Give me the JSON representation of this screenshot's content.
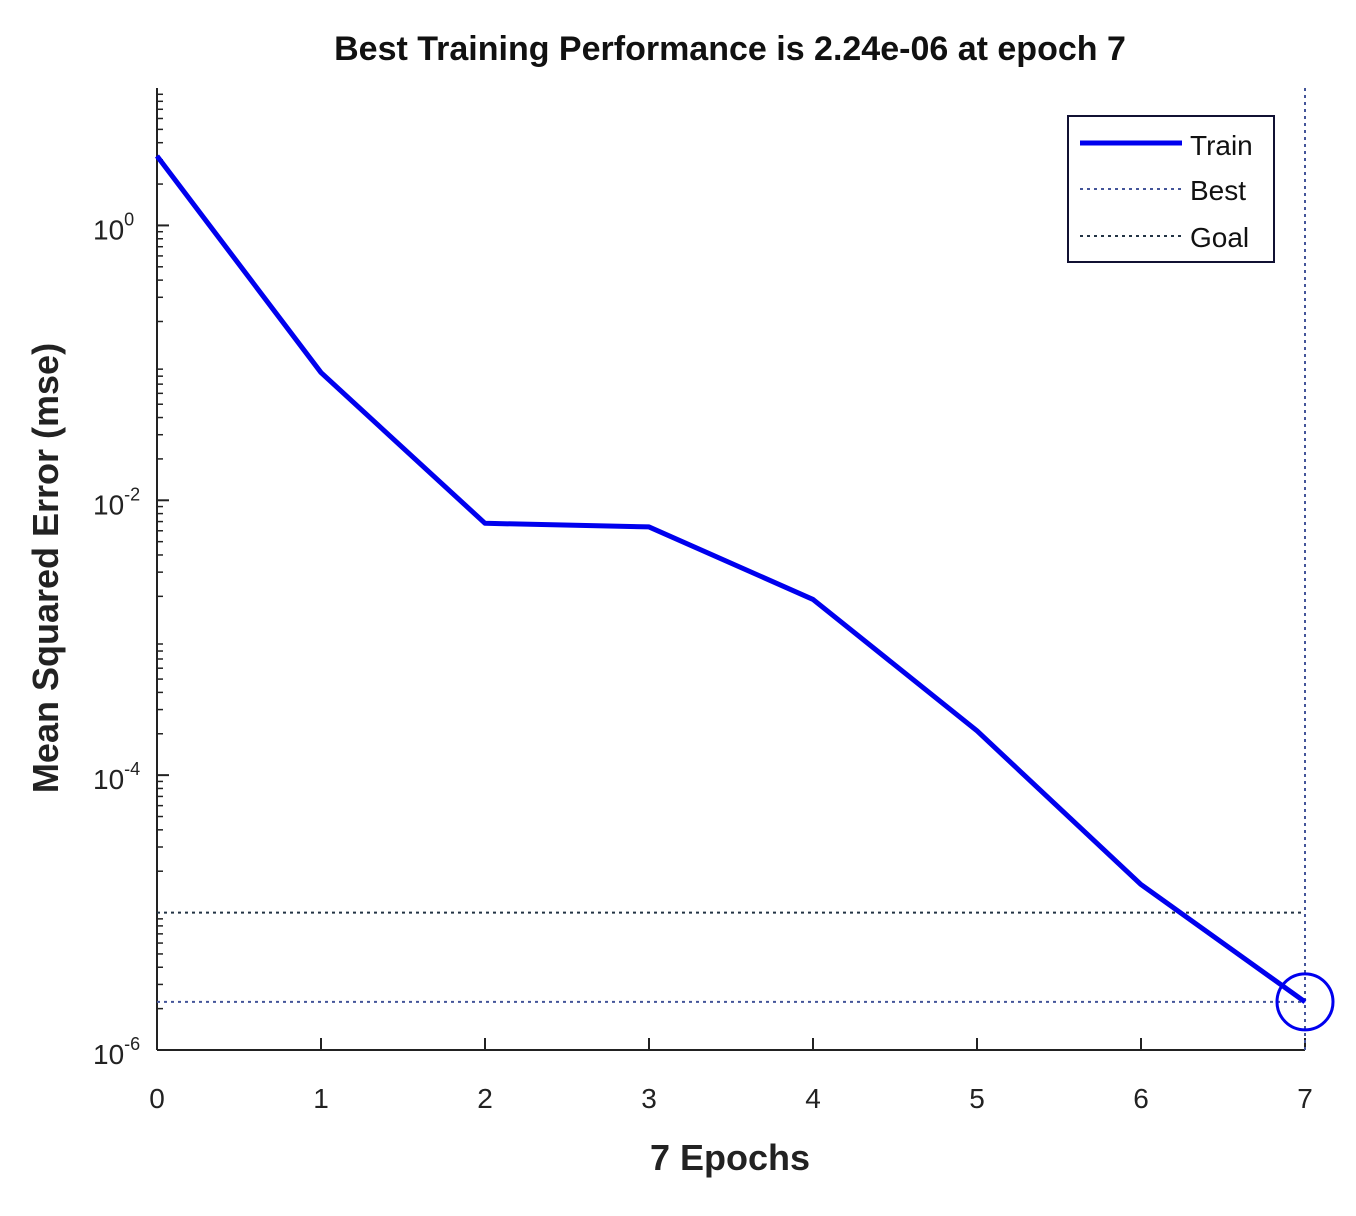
{
  "chart_data": {
    "type": "line",
    "title": "Best Training Performance is 2.24e-06 at epoch 7",
    "xlabel": "7 Epochs",
    "ylabel": "Mean Squared Error  (mse)",
    "x_scale": "linear",
    "y_scale": "log",
    "xlim": [
      0,
      7
    ],
    "ylim": [
      1e-06,
      10
    ],
    "x_ticks": [
      "0",
      "1",
      "2",
      "3",
      "4",
      "5",
      "6",
      "7"
    ],
    "y_ticks": [
      {
        "value": 1,
        "base": "10",
        "exp": "0"
      },
      {
        "value": 0.01,
        "base": "10",
        "exp": "-2"
      },
      {
        "value": 0.0001,
        "base": "10",
        "exp": "-4"
      },
      {
        "value": 1e-06,
        "base": "10",
        "exp": "-6"
      }
    ],
    "grid": false,
    "legend_position": "top-right",
    "series": [
      {
        "name": "Train",
        "color": "#0000ee",
        "style": "solid",
        "x": [
          0,
          1,
          2,
          3,
          4,
          5,
          6,
          7
        ],
        "y": [
          3.2,
          0.085,
          0.0068,
          0.0064,
          0.0019,
          0.00021,
          1.6e-05,
          2.24e-06
        ]
      },
      {
        "name": "Best",
        "color": "#445599",
        "style": "dotted",
        "kind": "marker-lines",
        "x": 7,
        "y": 2.24e-06
      },
      {
        "name": "Goal",
        "color": "#223344",
        "style": "dotted",
        "kind": "hline",
        "y": 1e-05
      }
    ],
    "best_marker": {
      "x": 7,
      "y": 2.24e-06,
      "shape": "circle",
      "color": "#0000ee"
    }
  }
}
